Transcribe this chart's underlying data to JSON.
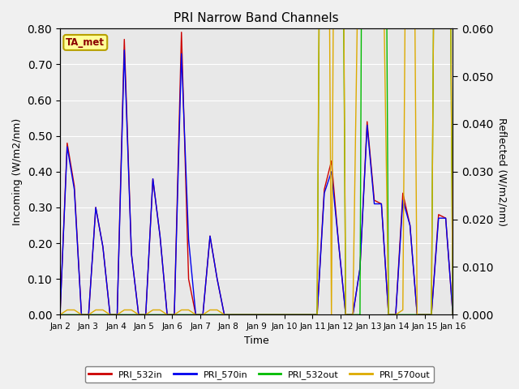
{
  "title": "PRI Narrow Band Channels",
  "xlabel": "Time",
  "ylabel_left": "Incoming (W/m2/nm)",
  "ylabel_right": "Reflected (W/m2/nm)",
  "ylim_left": [
    0.0,
    0.8
  ],
  "ylim_right": [
    0.0,
    0.06
  ],
  "fig_bg": "#f0f0f0",
  "plot_bg": "#e8e8e8",
  "annotation_text": "TA_met",
  "annotation_color": "#8B0000",
  "annotation_bg": "#ffff99",
  "annotation_border": "#b8a000",
  "colors": {
    "PRI_532in": "#cc0000",
    "PRI_570in": "#0000ee",
    "PRI_532out": "#00bb00",
    "PRI_570out": "#ddaa00"
  },
  "x_ticks": [
    "Jan 2",
    "Jan 3",
    "Jan 4",
    "Jan 5",
    "Jan 6",
    "Jan 7",
    "Jan 8",
    "Jan 9",
    "Jan 10",
    "Jan 11",
    "Jan 12",
    "Jan 13",
    "Jan 14",
    "Jan 15",
    "Jan 16"
  ],
  "PRI_532in": [
    0.0,
    0.48,
    0.36,
    0.0,
    0.0,
    0.3,
    0.19,
    0.0,
    0.0,
    0.77,
    0.17,
    0.0,
    0.0,
    0.38,
    0.22,
    0.0,
    0.0,
    0.79,
    0.1,
    0.0,
    0.0,
    0.22,
    0.1,
    0.0,
    0.0,
    0.0,
    0.0,
    0.0,
    0.0,
    0.0,
    0.0,
    0.0,
    0.0,
    0.0,
    0.0,
    0.0,
    0.0,
    0.35,
    0.43,
    0.2,
    0.0,
    0.0,
    0.13,
    0.54,
    0.32,
    0.31,
    0.0,
    0.0,
    0.34,
    0.25,
    0.0,
    0.0,
    0.0,
    0.28,
    0.27,
    0.0
  ],
  "PRI_570in": [
    0.0,
    0.47,
    0.35,
    0.0,
    0.0,
    0.3,
    0.19,
    0.0,
    0.0,
    0.74,
    0.17,
    0.0,
    0.0,
    0.38,
    0.22,
    0.0,
    0.0,
    0.73,
    0.21,
    0.0,
    0.0,
    0.22,
    0.1,
    0.0,
    0.0,
    0.0,
    0.0,
    0.0,
    0.0,
    0.0,
    0.0,
    0.0,
    0.0,
    0.0,
    0.0,
    0.0,
    0.0,
    0.34,
    0.4,
    0.2,
    0.0,
    0.0,
    0.13,
    0.53,
    0.31,
    0.31,
    0.0,
    0.0,
    0.32,
    0.25,
    0.0,
    0.0,
    0.0,
    0.27,
    0.27,
    0.0
  ],
  "PRI_532out": [
    0.0,
    0.0,
    0.0,
    0.0,
    0.0,
    0.0,
    0.0,
    0.0,
    0.0,
    0.0,
    0.0,
    0.0,
    0.0,
    0.0,
    0.0,
    0.0,
    0.0,
    0.0,
    0.0,
    0.0,
    0.0,
    0.0,
    0.0,
    0.0,
    0.0,
    0.0,
    0.0,
    0.0,
    0.0,
    0.0,
    0.0,
    0.0,
    0.0,
    0.0,
    0.0,
    0.0,
    0.0,
    0.22,
    0.33,
    0.22,
    0.0,
    0.0,
    0.0,
    0.33,
    0.32,
    0.25,
    0.0,
    0.0,
    0.0,
    0.0,
    0.0,
    0.0,
    0.0,
    0.21,
    0.21,
    0.0
  ],
  "PRI_570out": [
    0.0,
    0.001,
    0.001,
    0.0,
    0.0,
    0.001,
    0.001,
    0.0,
    0.0,
    0.001,
    0.001,
    0.0,
    0.0,
    0.001,
    0.001,
    0.0,
    0.0,
    0.001,
    0.001,
    0.0,
    0.0,
    0.001,
    0.001,
    0.0,
    0.0,
    0.0,
    0.0,
    0.0,
    0.0,
    0.0,
    0.0,
    0.0,
    0.0,
    0.0,
    0.0,
    0.0,
    0.0,
    0.24,
    0.0,
    0.24,
    0.0,
    0.0,
    0.1,
    0.61,
    0.4,
    0.1,
    0.0,
    0.0,
    0.001,
    0.2,
    0.0,
    0.0,
    0.0,
    0.21,
    0.21,
    0.0
  ]
}
